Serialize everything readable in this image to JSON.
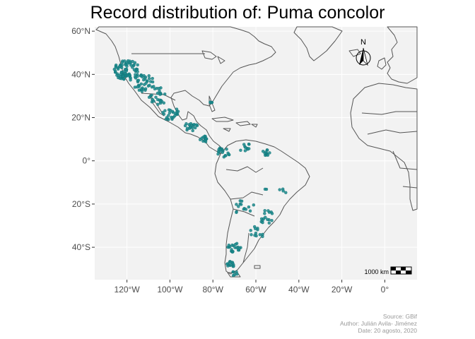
{
  "title": "Record distribution of: Puma concolor",
  "x_ticks": [
    {
      "lon": -120,
      "label": "120°W"
    },
    {
      "lon": -100,
      "label": "100°W"
    },
    {
      "lon": -80,
      "label": "80°W"
    },
    {
      "lon": -60,
      "label": "60°W"
    },
    {
      "lon": -40,
      "label": "40°W"
    },
    {
      "lon": -20,
      "label": "20°W"
    },
    {
      "lon": 0,
      "label": "0°"
    }
  ],
  "y_ticks": [
    {
      "lat": 60,
      "label": "60°N"
    },
    {
      "lat": 40,
      "label": "40°N"
    },
    {
      "lat": 20,
      "label": "20°N"
    },
    {
      "lat": 0,
      "label": "0°"
    },
    {
      "lat": -20,
      "label": "20°S"
    },
    {
      "lat": -40,
      "label": "40°S"
    }
  ],
  "extent": {
    "lon": [
      -135,
      15
    ],
    "lat": [
      -55,
      62
    ]
  },
  "north_arrow_label": "N",
  "scale_bar_label": "1000 km",
  "caption": {
    "source": "Source: GBif",
    "author": "Author: Julián Avila- Jiménez",
    "date": "Date: 20 agosto, 2020"
  },
  "colors": {
    "panel": "#f2f2f2",
    "grid": "#ffffff",
    "coast": "#555555",
    "points": "#1a8a8c"
  },
  "clusters": [
    {
      "lon": -120,
      "lat": 42,
      "n": 80,
      "spread": 6
    },
    {
      "lon": -112,
      "lat": 36,
      "n": 40,
      "spread": 5
    },
    {
      "lon": -105,
      "lat": 30,
      "n": 25,
      "spread": 5
    },
    {
      "lon": -100,
      "lat": 22,
      "n": 25,
      "spread": 4
    },
    {
      "lon": -90,
      "lat": 16,
      "n": 18,
      "spread": 3
    },
    {
      "lon": -84,
      "lat": 10,
      "n": 14,
      "spread": 2
    },
    {
      "lon": -75,
      "lat": 4,
      "n": 18,
      "spread": 3
    },
    {
      "lon": -65,
      "lat": 6,
      "n": 10,
      "spread": 3
    },
    {
      "lon": -55,
      "lat": 4,
      "n": 12,
      "spread": 2
    },
    {
      "lon": -81,
      "lat": 27,
      "n": 4,
      "spread": 1
    },
    {
      "lon": -65,
      "lat": -22,
      "n": 14,
      "spread": 5
    },
    {
      "lon": -55,
      "lat": -26,
      "n": 16,
      "spread": 4
    },
    {
      "lon": -60,
      "lat": -33,
      "n": 12,
      "spread": 4
    },
    {
      "lon": -70,
      "lat": -40,
      "n": 20,
      "spread": 3
    },
    {
      "lon": -72,
      "lat": -48,
      "n": 14,
      "spread": 2
    },
    {
      "lon": -70,
      "lat": -52,
      "n": 6,
      "spread": 1.5
    },
    {
      "lon": -50,
      "lat": -12,
      "n": 6,
      "spread": 6
    }
  ]
}
